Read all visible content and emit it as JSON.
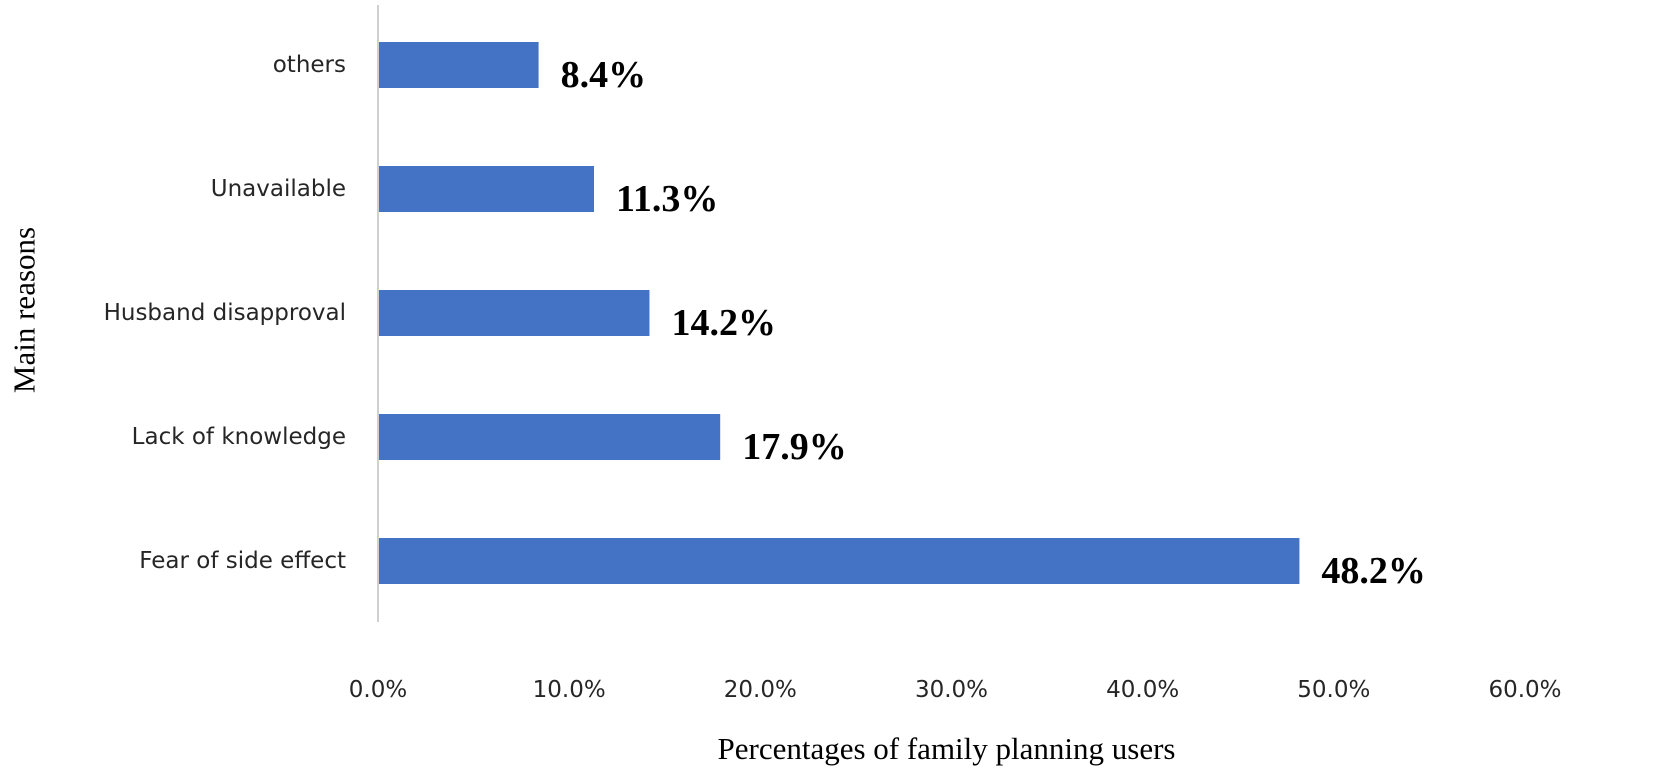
{
  "chart_data": {
    "type": "bar",
    "orientation": "horizontal",
    "title": "",
    "xlabel": "Percentages of family planning users",
    "ylabel": "Main reasons",
    "xlim": [
      0,
      60
    ],
    "x_ticks": [
      0,
      10,
      20,
      30,
      40,
      50,
      60
    ],
    "x_tick_labels": [
      "0.0%",
      "10.0%",
      "20.0%",
      "30.0%",
      "40.0%",
      "50.0%",
      "60.0%"
    ],
    "categories": [
      "others",
      "Unavailable",
      "Husband disapproval",
      "Lack of knowledge",
      "Fear of side effect"
    ],
    "values": [
      8.4,
      11.3,
      14.2,
      17.9,
      48.2
    ],
    "data_labels": [
      "8.4%",
      "11.3%",
      "14.2%",
      "17.9%",
      "48.2%"
    ],
    "bar_color": "#4472C4",
    "grid": false,
    "legend": "none"
  }
}
